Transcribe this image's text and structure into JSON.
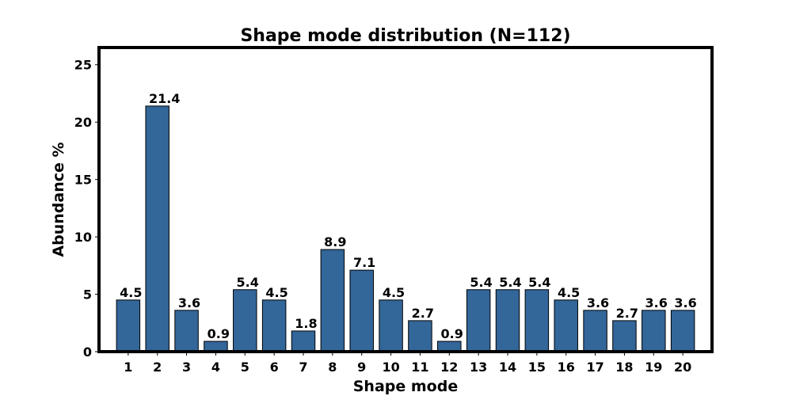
{
  "chart_data": {
    "type": "bar",
    "title": "Shape mode distribution (N=112)",
    "xlabel": "Shape mode",
    "ylabel": "Abundance %",
    "categories": [
      "1",
      "2",
      "3",
      "4",
      "5",
      "6",
      "7",
      "8",
      "9",
      "10",
      "11",
      "12",
      "13",
      "14",
      "15",
      "16",
      "17",
      "18",
      "19",
      "20"
    ],
    "values": [
      4.5,
      21.4,
      3.6,
      0.9,
      5.4,
      4.5,
      1.8,
      8.9,
      7.1,
      4.5,
      2.7,
      0.9,
      5.4,
      5.4,
      5.4,
      4.5,
      3.6,
      2.7,
      3.6,
      3.6
    ],
    "data_labels": [
      "4.5",
      "21.4",
      "3.6",
      "0.9",
      "5.4",
      "4.5",
      "1.8",
      "8.9",
      "7.1",
      "4.5",
      "2.7",
      "0.9",
      "5.4",
      "5.4",
      "5.4",
      "4.5",
      "3.6",
      "2.7",
      "3.6",
      "3.6"
    ],
    "ylim": [
      0,
      26.5
    ],
    "yticks": [
      0,
      5,
      10,
      15,
      20,
      25
    ],
    "bar_color": "#336699",
    "grid": false,
    "legend": "none"
  }
}
